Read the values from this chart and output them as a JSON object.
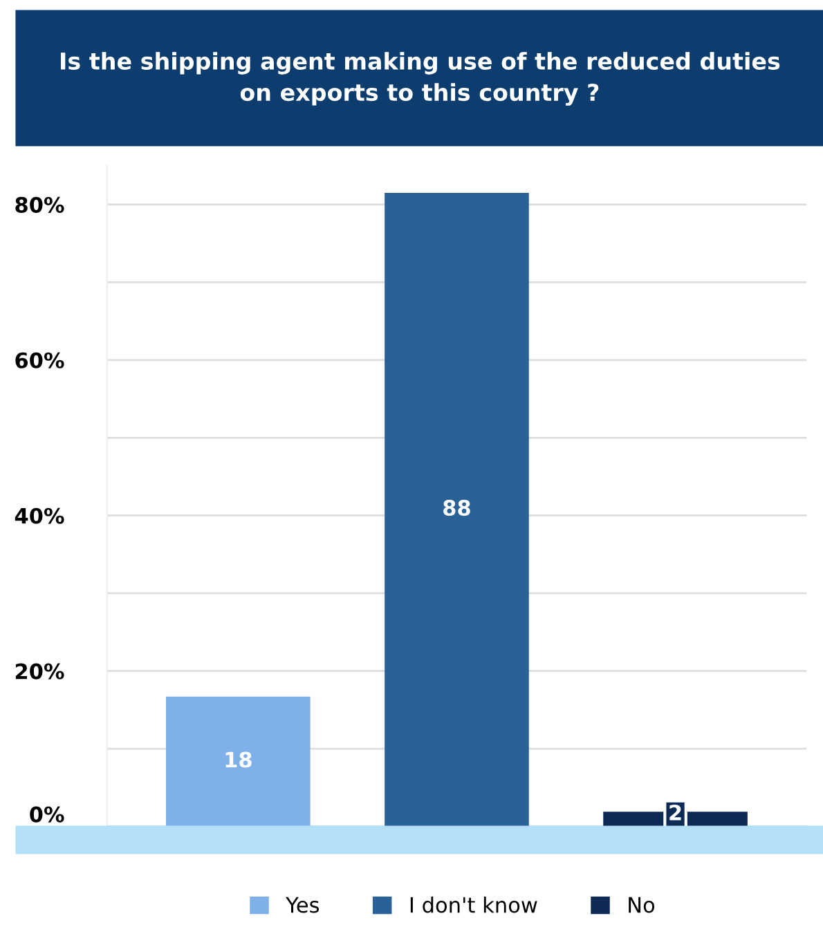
{
  "chart_data": {
    "type": "bar",
    "title": "Is the shipping agent making use of the reduced duties\non exports to this country ?",
    "categories": [
      null,
      null,
      null
    ],
    "series": [
      {
        "name": "Yes",
        "color": "#7fb0ea",
        "values": [
          16.7,
          null,
          null
        ]
      },
      {
        "name": "I don't know",
        "color": "#2a6196",
        "values": [
          null,
          81.5,
          null
        ]
      },
      {
        "name": "No",
        "color": "#0d2a55",
        "values": [
          null,
          null,
          1.9
        ]
      }
    ],
    "annotations": [
      "18",
      "88",
      "2"
    ],
    "ylim": [
      0,
      85
    ],
    "yticks": [
      {
        "value": 0,
        "label": "0%"
      },
      {
        "value": 10,
        "label": null
      },
      {
        "value": 20,
        "label": "20%"
      },
      {
        "value": 30,
        "label": null
      },
      {
        "value": 40,
        "label": "40%"
      },
      {
        "value": 50,
        "label": null
      },
      {
        "value": 60,
        "label": "60%"
      },
      {
        "value": 70,
        "label": null
      },
      {
        "value": 80,
        "label": "80%"
      }
    ],
    "grid": "y",
    "legend": "bottom",
    "tick_labels": "y"
  }
}
